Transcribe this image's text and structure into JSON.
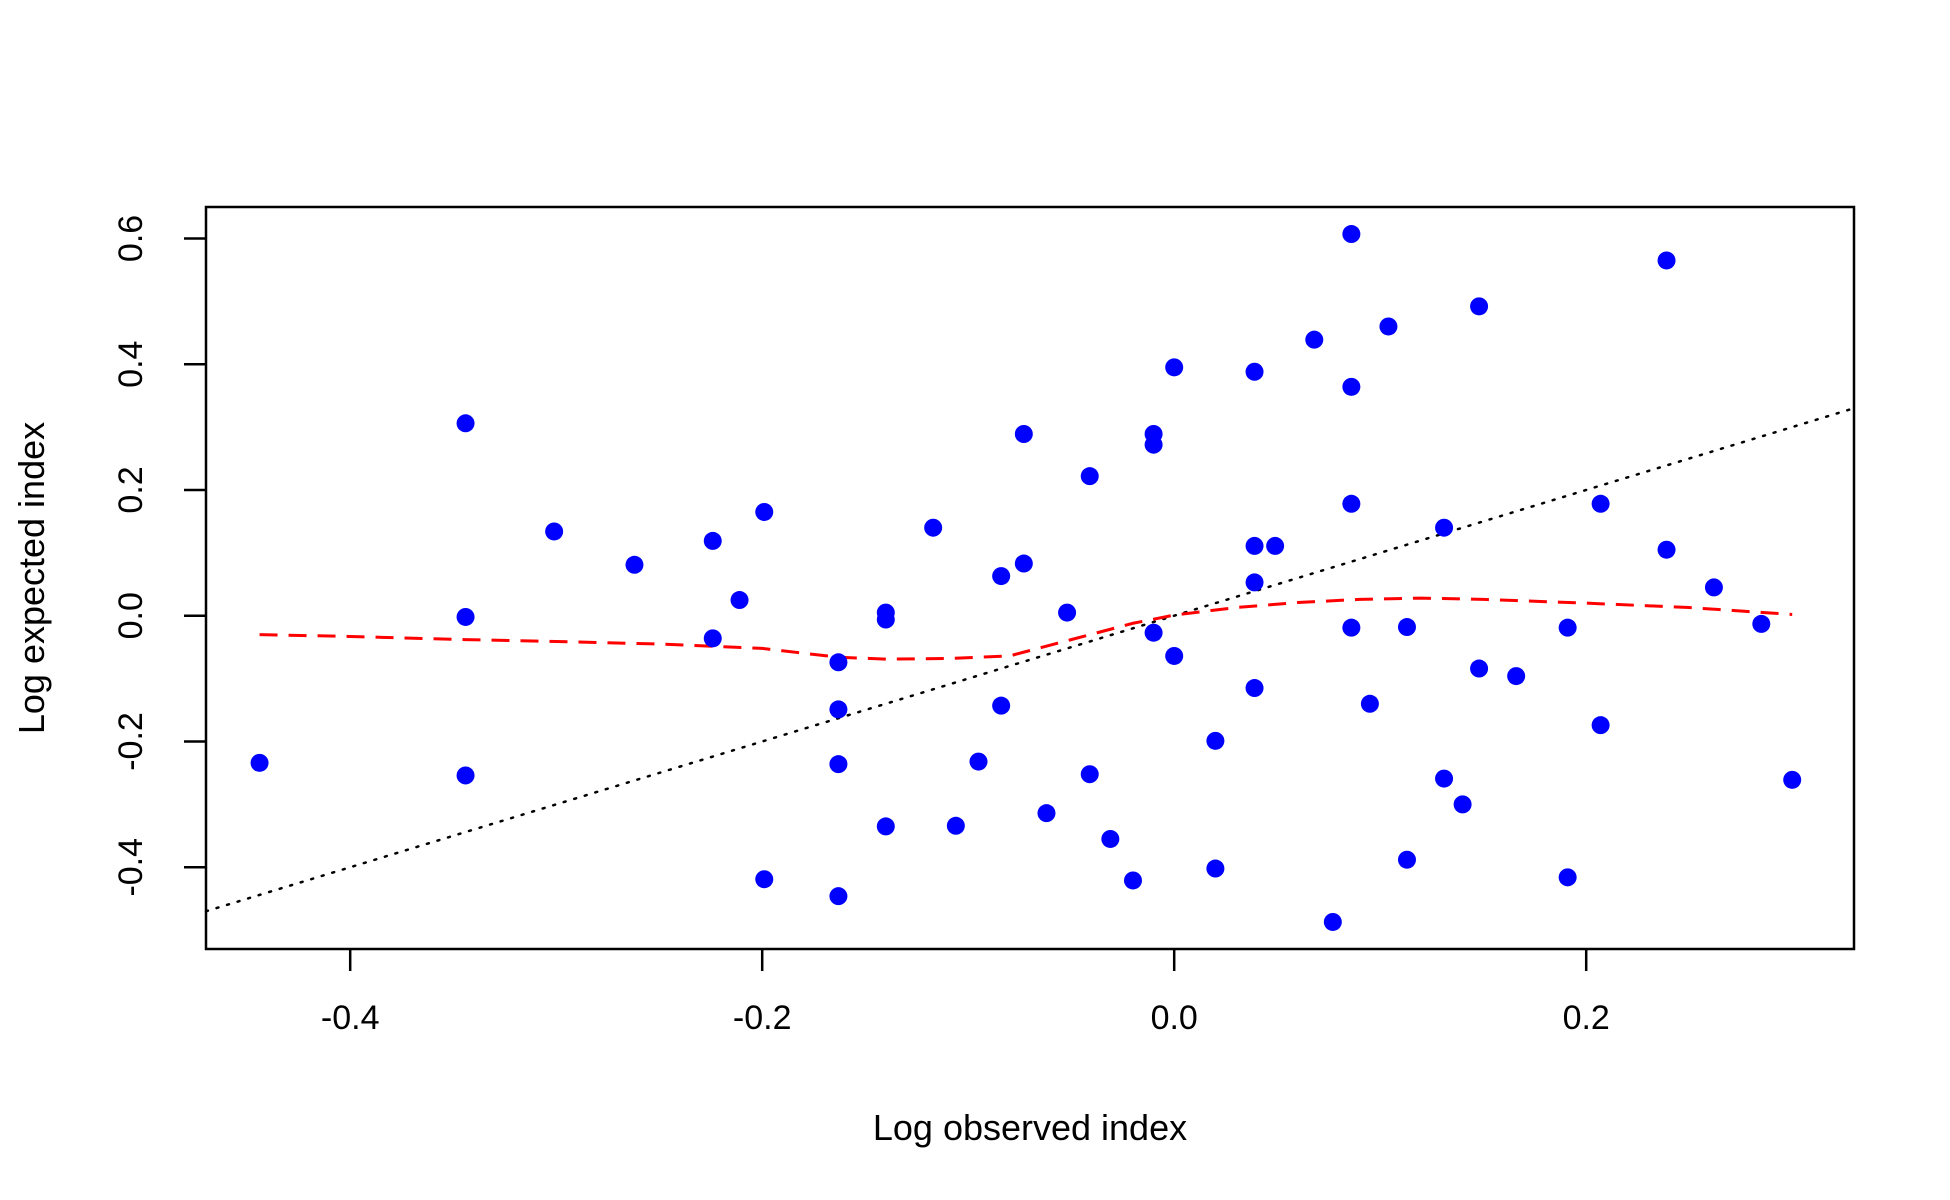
{
  "chart_data": {
    "type": "scatter",
    "title": "",
    "xlabel": "Log observed index",
    "ylabel": "Log expected index",
    "xlim": [
      -0.47,
      0.33
    ],
    "ylim": [
      -0.53,
      0.65
    ],
    "x_ticks": [
      -0.4,
      -0.2,
      0.0,
      0.2
    ],
    "x_tick_labels": [
      "-0.4",
      "-0.2",
      "0.0",
      "0.2"
    ],
    "y_ticks": [
      -0.4,
      -0.2,
      0.0,
      0.2,
      0.4,
      0.6
    ],
    "y_tick_labels": [
      "-0.4",
      "-0.2",
      "0.0",
      "0.2",
      "0.4",
      "0.6"
    ],
    "grid": false,
    "colors": {
      "points": "#0000ff",
      "smooth": "#ff0000",
      "identity": "#000000"
    },
    "points": [
      {
        "x": -0.444,
        "y": -0.234
      },
      {
        "x": -0.344,
        "y": 0.306
      },
      {
        "x": -0.344,
        "y": -0.002
      },
      {
        "x": -0.344,
        "y": -0.254
      },
      {
        "x": -0.301,
        "y": 0.134
      },
      {
        "x": -0.262,
        "y": 0.081
      },
      {
        "x": -0.224,
        "y": 0.119
      },
      {
        "x": -0.224,
        "y": -0.036
      },
      {
        "x": -0.211,
        "y": 0.025
      },
      {
        "x": -0.199,
        "y": 0.165
      },
      {
        "x": -0.199,
        "y": -0.419
      },
      {
        "x": -0.163,
        "y": -0.074
      },
      {
        "x": -0.163,
        "y": -0.149
      },
      {
        "x": -0.163,
        "y": -0.236
      },
      {
        "x": -0.163,
        "y": -0.446
      },
      {
        "x": -0.14,
        "y": 0.005
      },
      {
        "x": -0.14,
        "y": -0.006
      },
      {
        "x": -0.14,
        "y": -0.335
      },
      {
        "x": -0.117,
        "y": 0.14
      },
      {
        "x": -0.106,
        "y": -0.334
      },
      {
        "x": -0.095,
        "y": -0.232
      },
      {
        "x": -0.084,
        "y": 0.063
      },
      {
        "x": -0.084,
        "y": -0.143
      },
      {
        "x": -0.073,
        "y": 0.289
      },
      {
        "x": -0.073,
        "y": 0.083
      },
      {
        "x": -0.062,
        "y": -0.314
      },
      {
        "x": -0.052,
        "y": 0.005
      },
      {
        "x": -0.041,
        "y": 0.222
      },
      {
        "x": -0.041,
        "y": -0.252
      },
      {
        "x": -0.031,
        "y": -0.355
      },
      {
        "x": -0.02,
        "y": -0.421
      },
      {
        "x": -0.01,
        "y": 0.289
      },
      {
        "x": -0.01,
        "y": 0.272
      },
      {
        "x": -0.01,
        "y": -0.027
      },
      {
        "x": 0.0,
        "y": 0.395
      },
      {
        "x": 0.0,
        "y": -0.064
      },
      {
        "x": 0.02,
        "y": -0.199
      },
      {
        "x": 0.02,
        "y": -0.402
      },
      {
        "x": 0.039,
        "y": 0.388
      },
      {
        "x": 0.039,
        "y": 0.111
      },
      {
        "x": 0.039,
        "y": 0.053
      },
      {
        "x": 0.039,
        "y": -0.115
      },
      {
        "x": 0.049,
        "y": 0.111
      },
      {
        "x": 0.068,
        "y": 0.439
      },
      {
        "x": 0.077,
        "y": -0.487
      },
      {
        "x": 0.086,
        "y": 0.607
      },
      {
        "x": 0.086,
        "y": 0.364
      },
      {
        "x": 0.086,
        "y": 0.178
      },
      {
        "x": 0.086,
        "y": -0.019
      },
      {
        "x": 0.095,
        "y": -0.14
      },
      {
        "x": 0.104,
        "y": 0.46
      },
      {
        "x": 0.113,
        "y": -0.018
      },
      {
        "x": 0.113,
        "y": -0.388
      },
      {
        "x": 0.131,
        "y": 0.14
      },
      {
        "x": 0.131,
        "y": -0.259
      },
      {
        "x": 0.14,
        "y": -0.3
      },
      {
        "x": 0.148,
        "y": 0.492
      },
      {
        "x": 0.148,
        "y": -0.084
      },
      {
        "x": 0.166,
        "y": -0.096
      },
      {
        "x": 0.191,
        "y": -0.019
      },
      {
        "x": 0.191,
        "y": -0.416
      },
      {
        "x": 0.207,
        "y": 0.178
      },
      {
        "x": 0.207,
        "y": -0.174
      },
      {
        "x": 0.239,
        "y": 0.565
      },
      {
        "x": 0.239,
        "y": 0.105
      },
      {
        "x": 0.262,
        "y": 0.045
      },
      {
        "x": 0.285,
        "y": -0.013
      },
      {
        "x": 0.3,
        "y": -0.261
      }
    ],
    "smooth_line": {
      "style": "dashed",
      "x": [
        -0.444,
        -0.4,
        -0.344,
        -0.3,
        -0.25,
        -0.2,
        -0.163,
        -0.14,
        -0.11,
        -0.08,
        -0.05,
        -0.02,
        0.0,
        0.03,
        0.06,
        0.09,
        0.12,
        0.15,
        0.2,
        0.25,
        0.3
      ],
      "y": [
        -0.03,
        -0.033,
        -0.038,
        -0.041,
        -0.045,
        -0.052,
        -0.066,
        -0.069,
        -0.068,
        -0.064,
        -0.038,
        -0.012,
        0.001,
        0.013,
        0.021,
        0.026,
        0.028,
        0.026,
        0.02,
        0.013,
        0.002
      ]
    },
    "identity_line": {
      "style": "dotted",
      "x": [
        -0.47,
        0.33
      ],
      "y": [
        -0.47,
        0.33
      ]
    }
  }
}
